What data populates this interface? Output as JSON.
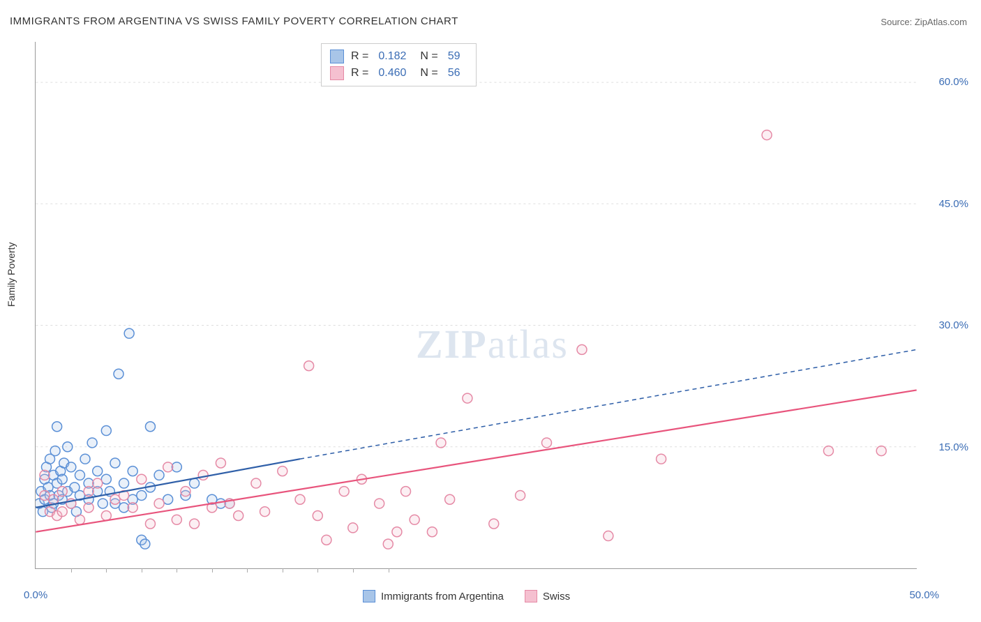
{
  "title": "IMMIGRANTS FROM ARGENTINA VS SWISS FAMILY POVERTY CORRELATION CHART",
  "source_label": "Source:",
  "source_name": "ZipAtlas.com",
  "watermark": {
    "part1": "ZIP",
    "part2": "atlas"
  },
  "ylabel": "Family Poverty",
  "chart": {
    "type": "scatter",
    "x_domain": [
      0,
      50
    ],
    "y_domain": [
      0,
      65
    ],
    "x_ticks_minor": [
      2,
      4,
      6,
      8,
      10,
      12,
      14,
      16,
      18,
      20
    ],
    "x_tick_labels": [
      {
        "v": 0,
        "label": "0.0%"
      },
      {
        "v": 50,
        "label": "50.0%"
      }
    ],
    "y_ticks": [
      {
        "v": 15,
        "label": "15.0%"
      },
      {
        "v": 30,
        "label": "30.0%"
      },
      {
        "v": 45,
        "label": "45.0%"
      },
      {
        "v": 60,
        "label": "60.0%"
      }
    ],
    "grid_color": "#dddddd",
    "background_color": "#ffffff",
    "marker_radius": 7,
    "marker_stroke_width": 1.5,
    "marker_fill_opacity": 0.25,
    "series": [
      {
        "name": "Immigrants from Argentina",
        "color_stroke": "#5a8fd6",
        "color_fill": "#a8c5e8",
        "R": "0.182",
        "N": "59",
        "trend": {
          "x1": 0,
          "y1": 7.5,
          "x2": 15,
          "y2": 13.5,
          "x2_ext": 50,
          "y2_ext": 27.0,
          "stroke": "#2f5fa8",
          "width": 2.2,
          "dash_ext": "6,5"
        },
        "points": [
          [
            0.2,
            8.0
          ],
          [
            0.3,
            9.5
          ],
          [
            0.4,
            7.0
          ],
          [
            0.5,
            11.0
          ],
          [
            0.5,
            8.5
          ],
          [
            0.6,
            12.5
          ],
          [
            0.7,
            10.0
          ],
          [
            0.8,
            9.0
          ],
          [
            0.8,
            13.5
          ],
          [
            0.9,
            7.5
          ],
          [
            1.0,
            11.5
          ],
          [
            1.0,
            8.0
          ],
          [
            1.1,
            14.5
          ],
          [
            1.2,
            10.5
          ],
          [
            1.2,
            17.5
          ],
          [
            1.3,
            9.0
          ],
          [
            1.4,
            12.0
          ],
          [
            1.5,
            8.5
          ],
          [
            1.5,
            11.0
          ],
          [
            1.6,
            13.0
          ],
          [
            1.8,
            9.5
          ],
          [
            1.8,
            15.0
          ],
          [
            2.0,
            8.0
          ],
          [
            2.0,
            12.5
          ],
          [
            2.2,
            10.0
          ],
          [
            2.3,
            7.0
          ],
          [
            2.5,
            11.5
          ],
          [
            2.5,
            9.0
          ],
          [
            2.8,
            13.5
          ],
          [
            3.0,
            8.5
          ],
          [
            3.0,
            10.5
          ],
          [
            3.2,
            15.5
          ],
          [
            3.5,
            9.5
          ],
          [
            3.5,
            12.0
          ],
          [
            3.8,
            8.0
          ],
          [
            4.0,
            11.0
          ],
          [
            4.0,
            17.0
          ],
          [
            4.2,
            9.5
          ],
          [
            4.5,
            13.0
          ],
          [
            4.5,
            8.0
          ],
          [
            4.7,
            24.0
          ],
          [
            5.0,
            10.5
          ],
          [
            5.0,
            7.5
          ],
          [
            5.3,
            29.0
          ],
          [
            5.5,
            12.0
          ],
          [
            5.5,
            8.5
          ],
          [
            6.0,
            9.0
          ],
          [
            6.0,
            3.5
          ],
          [
            6.2,
            3.0
          ],
          [
            6.5,
            17.5
          ],
          [
            6.5,
            10.0
          ],
          [
            7.0,
            11.5
          ],
          [
            7.5,
            8.5
          ],
          [
            8.0,
            12.5
          ],
          [
            8.5,
            9.0
          ],
          [
            9.0,
            10.5
          ],
          [
            10.0,
            8.5
          ],
          [
            10.5,
            8.0
          ],
          [
            11.0,
            8.0
          ]
        ]
      },
      {
        "name": "Swiss",
        "color_stroke": "#e589a5",
        "color_fill": "#f5c0d0",
        "R": "0.460",
        "N": "56",
        "trend": {
          "x1": 0,
          "y1": 4.5,
          "x2": 50,
          "y2": 22.0,
          "stroke": "#e8547c",
          "width": 2.2
        },
        "points": [
          [
            0.5,
            9.0
          ],
          [
            0.5,
            11.5
          ],
          [
            0.8,
            7.0
          ],
          [
            1.0,
            8.5
          ],
          [
            1.2,
            6.5
          ],
          [
            1.5,
            9.5
          ],
          [
            1.5,
            7.0
          ],
          [
            2.0,
            8.0
          ],
          [
            2.5,
            6.0
          ],
          [
            3.0,
            9.5
          ],
          [
            3.0,
            7.5
          ],
          [
            3.5,
            10.5
          ],
          [
            4.0,
            6.5
          ],
          [
            4.5,
            8.5
          ],
          [
            5.0,
            9.0
          ],
          [
            5.5,
            7.5
          ],
          [
            6.0,
            11.0
          ],
          [
            6.5,
            5.5
          ],
          [
            7.0,
            8.0
          ],
          [
            7.5,
            12.5
          ],
          [
            8.0,
            6.0
          ],
          [
            8.5,
            9.5
          ],
          [
            9.0,
            5.5
          ],
          [
            9.5,
            11.5
          ],
          [
            10.0,
            7.5
          ],
          [
            10.5,
            13.0
          ],
          [
            11.0,
            8.0
          ],
          [
            11.5,
            6.5
          ],
          [
            12.5,
            10.5
          ],
          [
            13.0,
            7.0
          ],
          [
            14.0,
            12.0
          ],
          [
            15.0,
            8.5
          ],
          [
            15.5,
            25.0
          ],
          [
            16.0,
            6.5
          ],
          [
            16.5,
            3.5
          ],
          [
            17.5,
            9.5
          ],
          [
            18.0,
            5.0
          ],
          [
            18.5,
            11.0
          ],
          [
            19.5,
            8.0
          ],
          [
            20.0,
            3.0
          ],
          [
            20.5,
            4.5
          ],
          [
            21.0,
            9.5
          ],
          [
            21.5,
            6.0
          ],
          [
            22.5,
            4.5
          ],
          [
            23.0,
            15.5
          ],
          [
            23.5,
            8.5
          ],
          [
            24.5,
            21.0
          ],
          [
            26.0,
            5.5
          ],
          [
            27.5,
            9.0
          ],
          [
            29.0,
            15.5
          ],
          [
            31.0,
            27.0
          ],
          [
            32.5,
            4.0
          ],
          [
            35.5,
            13.5
          ],
          [
            41.5,
            53.5
          ],
          [
            45.0,
            14.5
          ],
          [
            48.0,
            14.5
          ]
        ]
      }
    ]
  },
  "colors": {
    "tick_text": "#3b6db5"
  }
}
